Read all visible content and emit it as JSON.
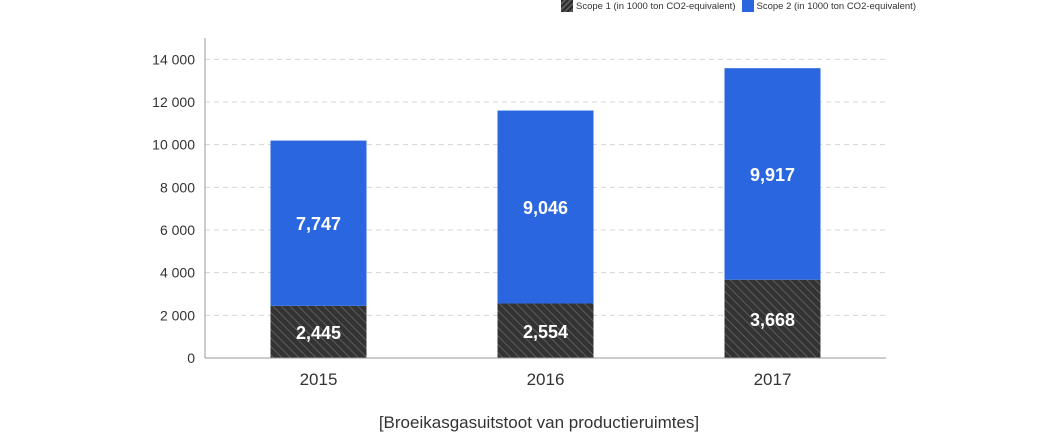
{
  "legend": {
    "scope1_label": "Scope 1 (in 1000 ton CO2-equivalent)",
    "scope2_label": "Scope 2 (in 1000 ton CO2-equivalent)"
  },
  "caption": "[Broeikasgasuitstoot van productieruimtes]",
  "colors": {
    "scope1": "#333333",
    "scope2": "#2966e0",
    "grid": "#d5d5d5",
    "axis": "#999999"
  },
  "chart_data": {
    "type": "bar",
    "stacked": true,
    "categories": [
      "2015",
      "2016",
      "2017"
    ],
    "series": [
      {
        "name": "Scope 1 (in 1000 ton CO2-equivalent)",
        "values": [
          2445,
          2554,
          3668
        ],
        "labels": [
          "2,445",
          "2,554",
          "3,668"
        ]
      },
      {
        "name": "Scope 2 (in 1000 ton CO2-equivalent)",
        "values": [
          7747,
          9046,
          9917
        ],
        "labels": [
          "7,747",
          "9,046",
          "9,917"
        ]
      }
    ],
    "yticks": [
      0,
      2000,
      4000,
      6000,
      8000,
      10000,
      12000,
      14000
    ],
    "ytick_labels": [
      "0",
      "2 000",
      "4 000",
      "6 000",
      "8 000",
      "10 000",
      "12 000",
      "14 000"
    ],
    "ylim": [
      0,
      15000
    ],
    "grid": true,
    "legend_position": "top-right"
  }
}
